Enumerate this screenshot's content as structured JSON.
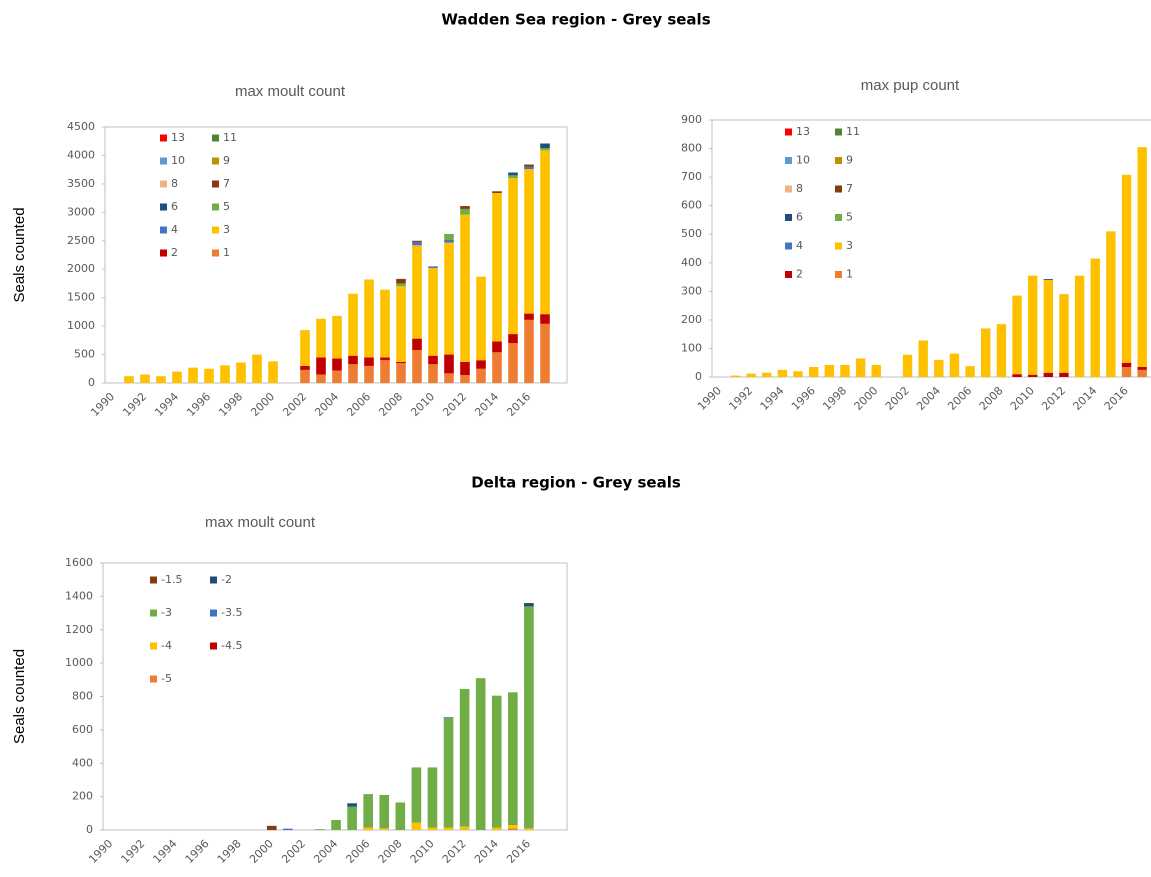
{
  "headings": [
    "Wadden Sea region - Grey seals",
    "Delta region - Grey seals"
  ],
  "chart_data": [
    {
      "type": "bar",
      "stacked": true,
      "title": "max moult count",
      "y_label": "Seals counted",
      "categories": [
        "1990",
        null,
        "1992",
        null,
        "1994",
        null,
        "1996",
        null,
        "1998",
        null,
        "2000",
        null,
        "2002",
        null,
        "2004",
        null,
        "2006",
        null,
        "2008",
        null,
        "2010",
        null,
        "2012",
        null,
        "2014",
        null,
        "2016",
        null
      ],
      "ylim": [
        0,
        4500
      ],
      "yticks": [
        0,
        500,
        1000,
        1500,
        2000,
        2500,
        3000,
        3500,
        4000,
        4500
      ],
      "series": [
        {
          "name": "1",
          "color": "#ed7d31",
          "values": [
            0,
            0,
            0,
            0,
            0,
            0,
            0,
            0,
            0,
            0,
            0,
            0,
            230,
            150,
            220,
            330,
            300,
            400,
            350,
            580,
            330,
            170,
            140,
            250,
            540,
            700,
            1110,
            1040
          ]
        },
        {
          "name": "2",
          "color": "#c00000",
          "values": [
            0,
            0,
            0,
            0,
            0,
            0,
            0,
            0,
            0,
            0,
            0,
            0,
            70,
            300,
            210,
            150,
            150,
            50,
            20,
            200,
            150,
            330,
            230,
            150,
            190,
            160,
            110,
            170
          ]
        },
        {
          "name": "3",
          "color": "#ffc000",
          "values": [
            0,
            120,
            150,
            120,
            200,
            270,
            250,
            310,
            360,
            500,
            380,
            0,
            630,
            680,
            750,
            1090,
            1370,
            1190,
            1330,
            1640,
            1540,
            1970,
            2590,
            1470,
            2610,
            2740,
            2540,
            2880
          ]
        },
        {
          "name": "4",
          "color": "#4472c4",
          "values": [
            0,
            0,
            0,
            0,
            0,
            0,
            0,
            0,
            0,
            0,
            0,
            0,
            0,
            0,
            0,
            0,
            0,
            0,
            0,
            60,
            30,
            50,
            0,
            0,
            0,
            0,
            40,
            0
          ]
        },
        {
          "name": "5",
          "color": "#70ad47",
          "values": [
            0,
            0,
            0,
            0,
            0,
            0,
            0,
            0,
            0,
            0,
            0,
            0,
            0,
            0,
            0,
            0,
            0,
            0,
            50,
            0,
            0,
            100,
            100,
            0,
            0,
            50,
            0,
            40
          ]
        },
        {
          "name": "6",
          "color": "#1f4e79",
          "values": [
            0,
            0,
            0,
            0,
            0,
            0,
            0,
            0,
            0,
            0,
            0,
            0,
            0,
            0,
            0,
            0,
            0,
            0,
            0,
            0,
            0,
            0,
            0,
            0,
            0,
            50,
            0,
            80
          ]
        },
        {
          "name": "7",
          "color": "#843c0c",
          "values": [
            0,
            0,
            0,
            0,
            0,
            0,
            0,
            0,
            0,
            0,
            0,
            0,
            0,
            0,
            0,
            0,
            0,
            0,
            80,
            20,
            0,
            0,
            50,
            0,
            30,
            0,
            40,
            0
          ]
        },
        {
          "name": "8",
          "color": "#f4b183",
          "values": [
            0,
            0,
            0,
            0,
            0,
            0,
            0,
            0,
            0,
            0,
            0,
            0,
            0,
            0,
            0,
            0,
            0,
            0,
            0,
            0,
            0,
            0,
            0,
            0,
            0,
            0,
            0,
            0
          ]
        },
        {
          "name": "9",
          "color": "#bf9000",
          "values": [
            0,
            0,
            0,
            0,
            0,
            0,
            0,
            0,
            0,
            0,
            0,
            0,
            0,
            0,
            0,
            0,
            0,
            0,
            0,
            0,
            0,
            0,
            0,
            0,
            0,
            0,
            0,
            0
          ]
        },
        {
          "name": "10",
          "color": "#5b9bd5",
          "values": [
            0,
            0,
            0,
            0,
            0,
            0,
            0,
            0,
            0,
            0,
            0,
            0,
            0,
            0,
            0,
            0,
            0,
            0,
            0,
            0,
            0,
            0,
            0,
            0,
            0,
            0,
            0,
            0
          ]
        },
        {
          "name": "11",
          "color": "#548235",
          "values": [
            0,
            0,
            0,
            0,
            0,
            0,
            0,
            0,
            0,
            0,
            0,
            0,
            0,
            0,
            0,
            0,
            0,
            0,
            0,
            0,
            0,
            0,
            0,
            0,
            0,
            0,
            0,
            0
          ]
        },
        {
          "name": "13",
          "color": "#ff0000",
          "values": [
            0,
            0,
            0,
            0,
            0,
            0,
            0,
            0,
            0,
            0,
            0,
            0,
            0,
            0,
            0,
            0,
            0,
            0,
            0,
            0,
            0,
            0,
            0,
            0,
            0,
            0,
            0,
            0
          ]
        }
      ]
    },
    {
      "type": "bar",
      "stacked": true,
      "title": "max pup count",
      "categories": [
        "1990",
        null,
        "1992",
        null,
        "1994",
        null,
        "1996",
        null,
        "1998",
        null,
        "2000",
        null,
        "2002",
        null,
        "2004",
        null,
        "2006",
        null,
        "2008",
        null,
        "2010",
        null,
        "2012",
        null,
        "2014",
        null,
        "2016",
        null
      ],
      "ylim": [
        0,
        900
      ],
      "yticks": [
        0,
        100,
        200,
        300,
        400,
        500,
        600,
        700,
        800,
        900
      ],
      "series": [
        {
          "name": "1",
          "color": "#ed7d31",
          "values": [
            0,
            0,
            0,
            0,
            0,
            0,
            0,
            0,
            0,
            0,
            0,
            0,
            0,
            0,
            0,
            0,
            0,
            0,
            0,
            0,
            0,
            0,
            0,
            0,
            0,
            0,
            35,
            25
          ]
        },
        {
          "name": "2",
          "color": "#c00000",
          "values": [
            0,
            0,
            0,
            0,
            0,
            0,
            0,
            0,
            0,
            0,
            0,
            0,
            0,
            0,
            0,
            0,
            0,
            0,
            0,
            10,
            8,
            15,
            15,
            0,
            0,
            0,
            15,
            10
          ]
        },
        {
          "name": "3",
          "color": "#ffc000",
          "values": [
            0,
            5,
            12,
            15,
            25,
            20,
            35,
            42,
            42,
            65,
            42,
            0,
            78,
            128,
            60,
            82,
            38,
            170,
            185,
            275,
            347,
            325,
            275,
            355,
            415,
            510,
            658,
            770
          ]
        },
        {
          "name": "4",
          "color": "#4472c4",
          "values": [
            0,
            0,
            0,
            0,
            0,
            0,
            0,
            0,
            0,
            0,
            0,
            0,
            0,
            0,
            0,
            0,
            0,
            0,
            0,
            0,
            0,
            0,
            0,
            0,
            0,
            0,
            0,
            0
          ]
        },
        {
          "name": "5",
          "color": "#70ad47",
          "values": [
            0,
            0,
            0,
            0,
            0,
            0,
            0,
            0,
            0,
            0,
            0,
            0,
            0,
            0,
            0,
            0,
            0,
            0,
            0,
            0,
            0,
            0,
            0,
            0,
            0,
            0,
            0,
            0
          ]
        },
        {
          "name": "6",
          "color": "#1f4e79",
          "values": [
            0,
            0,
            0,
            0,
            0,
            0,
            0,
            0,
            0,
            0,
            0,
            0,
            0,
            0,
            0,
            0,
            0,
            0,
            0,
            0,
            0,
            3,
            0,
            0,
            0,
            0,
            0,
            0
          ]
        },
        {
          "name": "7",
          "color": "#843c0c",
          "values": [
            0,
            0,
            0,
            0,
            0,
            0,
            0,
            0,
            0,
            0,
            0,
            0,
            0,
            0,
            0,
            0,
            0,
            0,
            0,
            0,
            0,
            0,
            0,
            0,
            0,
            0,
            0,
            0
          ]
        },
        {
          "name": "8",
          "color": "#f4b183",
          "values": [
            0,
            0,
            0,
            0,
            0,
            0,
            0,
            0,
            0,
            0,
            0,
            0,
            0,
            0,
            0,
            0,
            0,
            0,
            0,
            0,
            0,
            0,
            0,
            0,
            0,
            0,
            0,
            0
          ]
        },
        {
          "name": "9",
          "color": "#bf9000",
          "values": [
            0,
            0,
            0,
            0,
            0,
            0,
            0,
            0,
            0,
            0,
            0,
            0,
            0,
            0,
            0,
            0,
            0,
            0,
            0,
            0,
            0,
            0,
            0,
            0,
            0,
            0,
            0,
            0
          ]
        },
        {
          "name": "10",
          "color": "#5b9bd5",
          "values": [
            0,
            0,
            0,
            0,
            0,
            0,
            0,
            0,
            0,
            0,
            0,
            0,
            0,
            0,
            0,
            0,
            0,
            0,
            0,
            0,
            0,
            0,
            0,
            0,
            0,
            0,
            0,
            0
          ]
        },
        {
          "name": "11",
          "color": "#548235",
          "values": [
            0,
            0,
            0,
            0,
            0,
            0,
            0,
            0,
            0,
            0,
            0,
            0,
            0,
            0,
            0,
            0,
            0,
            0,
            0,
            0,
            0,
            0,
            0,
            0,
            0,
            0,
            0,
            0
          ]
        },
        {
          "name": "13",
          "color": "#ff0000",
          "values": [
            0,
            0,
            0,
            0,
            0,
            0,
            0,
            0,
            0,
            0,
            0,
            0,
            0,
            0,
            0,
            0,
            0,
            0,
            0,
            0,
            0,
            0,
            0,
            0,
            0,
            0,
            0,
            0
          ]
        }
      ]
    },
    {
      "type": "bar",
      "stacked": true,
      "title": "max moult count",
      "y_label": "Seals counted",
      "categories": [
        "1990",
        null,
        "1992",
        null,
        "1994",
        null,
        "1996",
        null,
        "1998",
        null,
        "2000",
        null,
        "2002",
        null,
        "2004",
        null,
        "2006",
        null,
        "2008",
        null,
        "2010",
        null,
        "2012",
        null,
        "2014",
        null,
        "2016",
        null
      ],
      "ylim": [
        0,
        1600
      ],
      "yticks": [
        0,
        200,
        400,
        600,
        800,
        1000,
        1200,
        1400,
        1600
      ],
      "series": [
        {
          "name": "-5",
          "color": "#ed7d31",
          "values": [
            0,
            0,
            0,
            0,
            0,
            0,
            0,
            0,
            0,
            0,
            0,
            0,
            0,
            0,
            0,
            0,
            0,
            0,
            0,
            0,
            0,
            0,
            0,
            0,
            0,
            10,
            0,
            0
          ]
        },
        {
          "name": "-4.5",
          "color": "#c00000",
          "values": [
            0,
            0,
            0,
            0,
            0,
            0,
            0,
            0,
            0,
            0,
            0,
            0,
            0,
            0,
            0,
            0,
            0,
            0,
            0,
            0,
            0,
            0,
            0,
            0,
            0,
            0,
            0,
            0
          ]
        },
        {
          "name": "-4",
          "color": "#ffc000",
          "values": [
            0,
            0,
            0,
            0,
            0,
            0,
            0,
            0,
            0,
            0,
            0,
            0,
            0,
            0,
            0,
            0,
            15,
            10,
            0,
            45,
            15,
            15,
            20,
            0,
            15,
            20,
            10,
            0
          ]
        },
        {
          "name": "-3.5",
          "color": "#4472c4",
          "values": [
            0,
            0,
            0,
            0,
            0,
            0,
            0,
            0,
            0,
            0,
            0,
            8,
            0,
            0,
            0,
            0,
            0,
            0,
            0,
            0,
            0,
            0,
            0,
            0,
            0,
            0,
            0,
            0
          ]
        },
        {
          "name": "-3",
          "color": "#70ad47",
          "values": [
            0,
            0,
            0,
            0,
            0,
            0,
            0,
            0,
            0,
            0,
            0,
            0,
            0,
            5,
            60,
            140,
            200,
            200,
            165,
            330,
            360,
            655,
            825,
            910,
            790,
            795,
            1330,
            0
          ]
        },
        {
          "name": "-2",
          "color": "#1f4e79",
          "values": [
            0,
            0,
            0,
            0,
            0,
            0,
            0,
            0,
            0,
            0,
            0,
            0,
            0,
            0,
            0,
            20,
            0,
            0,
            0,
            0,
            0,
            5,
            0,
            0,
            0,
            0,
            20,
            0
          ]
        },
        {
          "name": "-1.5",
          "color": "#843c0c",
          "values": [
            0,
            0,
            0,
            0,
            0,
            0,
            0,
            0,
            0,
            0,
            25,
            0,
            0,
            0,
            0,
            0,
            0,
            0,
            0,
            0,
            0,
            0,
            0,
            0,
            0,
            0,
            0,
            0
          ]
        }
      ]
    }
  ]
}
